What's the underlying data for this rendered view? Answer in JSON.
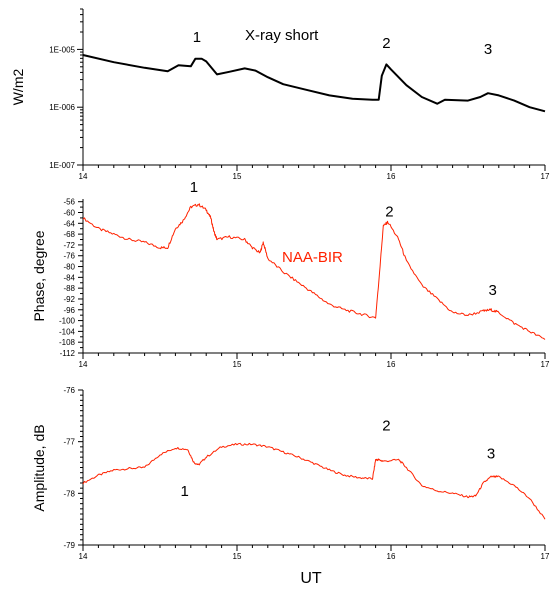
{
  "colors": {
    "axis": "#000000",
    "xray_line": "#000000",
    "vlf_line": "#ff2200"
  },
  "xlabel": "UT",
  "chart_data": [
    {
      "type": "line",
      "title": "X-ray short",
      "ylabel": "W/m2",
      "yscale": "log",
      "ylim": [
        1e-07,
        5e-05
      ],
      "xlim": [
        14,
        17
      ],
      "x_tick_labels": [
        "14",
        "15",
        "16",
        "17"
      ],
      "y_tick_labels": [
        "1E-005",
        "1E-006",
        "1E-007"
      ],
      "y_tick_values": [
        1e-05,
        1e-06,
        1e-07
      ],
      "annotations": [
        {
          "text": "1",
          "x": 14.74,
          "y": 1.35e-05
        },
        {
          "text": "2",
          "x": 15.97,
          "y": 1.05e-05
        },
        {
          "text": "3",
          "x": 16.63,
          "y": 8.3e-06
        }
      ],
      "series": [
        {
          "color": "#000000",
          "x": [
            14.0,
            14.2,
            14.4,
            14.55,
            14.62,
            14.66,
            14.7,
            14.73,
            14.77,
            14.8,
            14.87,
            14.95,
            15.05,
            15.12,
            15.2,
            15.3,
            15.45,
            15.6,
            15.75,
            15.88,
            15.92,
            15.94,
            15.97,
            16.0,
            16.1,
            16.2,
            16.3,
            16.35,
            16.5,
            16.58,
            16.63,
            16.7,
            16.8,
            16.9,
            17.0
          ],
          "y": [
            8e-06,
            6e-06,
            4.8e-06,
            4.2e-06,
            5.3e-06,
            5.2e-06,
            5.1e-06,
            6.9e-06,
            6.9e-06,
            6.2e-06,
            3.7e-06,
            4.1e-06,
            4.7e-06,
            4.3e-06,
            3.3e-06,
            2.5e-06,
            2e-06,
            1.6e-06,
            1.4e-06,
            1.35e-06,
            1.35e-06,
            3.5e-06,
            5.5e-06,
            4.5e-06,
            2.4e-06,
            1.5e-06,
            1.15e-06,
            1.35e-06,
            1.3e-06,
            1.5e-06,
            1.75e-06,
            1.6e-06,
            1.3e-06,
            1e-06,
            8.5e-07
          ]
        }
      ]
    },
    {
      "type": "line",
      "title": "NAA-BIR",
      "ylabel": "Phase, degree",
      "ylim": [
        -112,
        -55
      ],
      "xlim": [
        14,
        17
      ],
      "x_tick_labels": [
        "14",
        "15",
        "16",
        "17"
      ],
      "y_tick_labels": [
        "-56",
        "-60",
        "-64",
        "-68",
        "-72",
        "-76",
        "-80",
        "-84",
        "-88",
        "-92",
        "-96",
        "-100",
        "-104",
        "-108",
        "-112"
      ],
      "y_tick_values": [
        -56,
        -60,
        -64,
        -68,
        -72,
        -76,
        -80,
        -84,
        -88,
        -92,
        -96,
        -100,
        -104,
        -108,
        -112
      ],
      "annotations": [
        {
          "text": "1",
          "x": 14.72,
          "y": -52.5
        },
        {
          "text": "2",
          "x": 15.99,
          "y": -61.5
        },
        {
          "text": "3",
          "x": 16.66,
          "y": -90.5
        }
      ],
      "series": [
        {
          "color": "#ff2200",
          "x": [
            14.0,
            14.1,
            14.2,
            14.3,
            14.4,
            14.5,
            14.55,
            14.6,
            14.65,
            14.7,
            14.75,
            14.8,
            14.83,
            14.85,
            14.87,
            14.95,
            15.05,
            15.1,
            15.15,
            15.17,
            15.2,
            15.3,
            15.4,
            15.5,
            15.6,
            15.7,
            15.8,
            15.9,
            15.92,
            15.95,
            15.98,
            16.05,
            16.1,
            16.2,
            16.3,
            16.4,
            16.5,
            16.6,
            16.65,
            16.7,
            16.8,
            16.9,
            17.0
          ],
          "y": [
            -62,
            -66,
            -68,
            -70,
            -71,
            -73,
            -73,
            -66,
            -63,
            -58,
            -57,
            -59,
            -62,
            -67,
            -70,
            -69,
            -70,
            -73,
            -75,
            -71,
            -77,
            -82,
            -86,
            -90,
            -94,
            -96,
            -97.5,
            -99,
            -86,
            -65,
            -63.5,
            -70,
            -78,
            -87,
            -92,
            -97,
            -98,
            -96.5,
            -96,
            -97,
            -101,
            -104,
            -107
          ]
        }
      ]
    },
    {
      "type": "line",
      "title": "",
      "ylabel": "Amplitude, dB",
      "ylim": [
        -79,
        -76
      ],
      "xlim": [
        14,
        17
      ],
      "x_tick_labels": [
        "14",
        "15",
        "16",
        "17"
      ],
      "y_tick_labels": [
        "-76",
        "-77",
        "-78",
        "-79"
      ],
      "y_tick_values": [
        -76,
        -77,
        -78,
        -79
      ],
      "annotations": [
        {
          "text": "1",
          "x": 14.66,
          "y": -78.05
        },
        {
          "text": "2",
          "x": 15.97,
          "y": -76.78
        },
        {
          "text": "3",
          "x": 16.65,
          "y": -77.33
        }
      ],
      "series": [
        {
          "color": "#ff2200",
          "x": [
            14.0,
            14.1,
            14.2,
            14.3,
            14.4,
            14.5,
            14.6,
            14.68,
            14.72,
            14.75,
            14.8,
            14.9,
            15.0,
            15.1,
            15.2,
            15.3,
            15.4,
            15.5,
            15.6,
            15.7,
            15.8,
            15.88,
            15.9,
            15.92,
            15.95,
            16.05,
            16.1,
            16.2,
            16.3,
            16.4,
            16.5,
            16.55,
            16.6,
            16.65,
            16.7,
            16.8,
            16.9,
            17.0
          ],
          "y": [
            -77.8,
            -77.65,
            -77.55,
            -77.52,
            -77.5,
            -77.25,
            -77.12,
            -77.15,
            -77.4,
            -77.45,
            -77.3,
            -77.1,
            -77.05,
            -77.05,
            -77.1,
            -77.2,
            -77.3,
            -77.42,
            -77.55,
            -77.65,
            -77.7,
            -77.72,
            -77.35,
            -77.35,
            -77.38,
            -77.35,
            -77.5,
            -77.85,
            -77.95,
            -78.0,
            -78.07,
            -78.05,
            -77.8,
            -77.68,
            -77.68,
            -77.85,
            -78.1,
            -78.5
          ]
        }
      ]
    }
  ]
}
